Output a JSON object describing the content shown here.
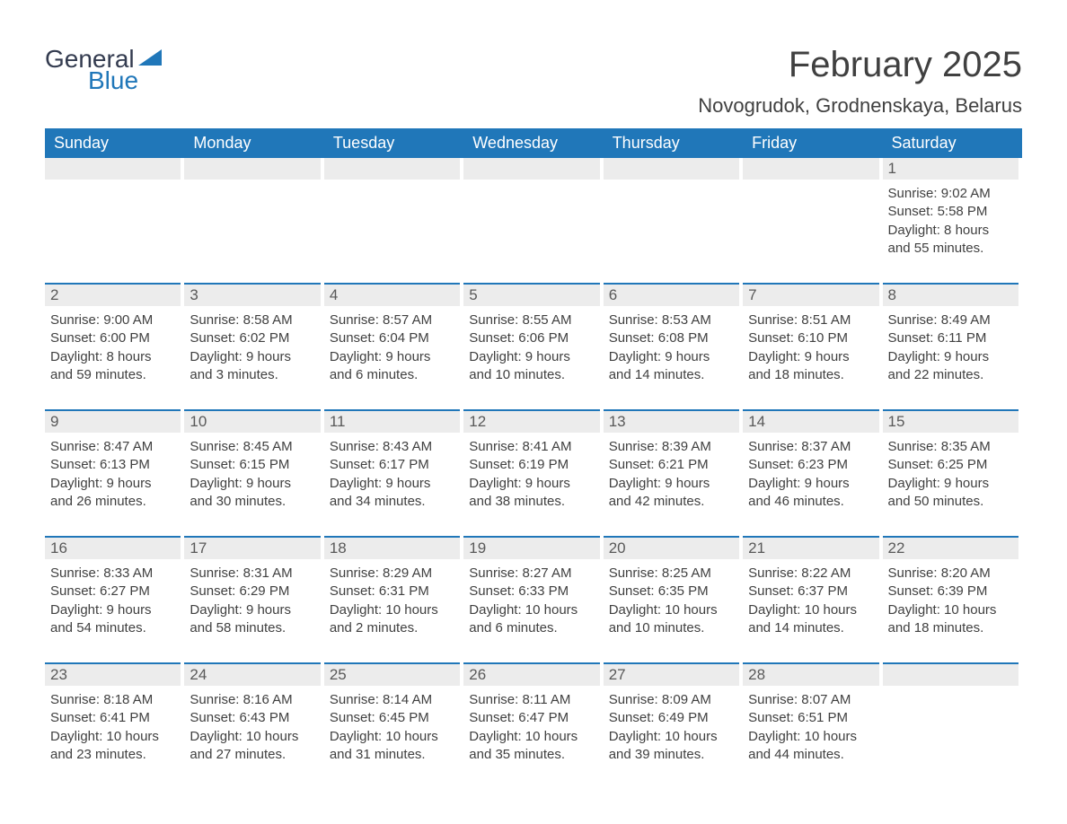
{
  "logo": {
    "text_general": "General",
    "text_blue": "Blue",
    "triangle_color": "#2077b9"
  },
  "title": "February 2025",
  "location": "Novogrudok, Grodnenskaya, Belarus",
  "colors": {
    "header_bg": "#2077b9",
    "header_text": "#ffffff",
    "daynum_bg": "#ececec",
    "daynum_border": "#2077b9",
    "daynum_text": "#595959",
    "body_text": "#404040",
    "page_bg": "#ffffff"
  },
  "weekdays": [
    "Sunday",
    "Monday",
    "Tuesday",
    "Wednesday",
    "Thursday",
    "Friday",
    "Saturday"
  ],
  "weeks": [
    [
      {
        "n": "",
        "sunrise": "",
        "sunset": "",
        "daylight1": "",
        "daylight2": ""
      },
      {
        "n": "",
        "sunrise": "",
        "sunset": "",
        "daylight1": "",
        "daylight2": ""
      },
      {
        "n": "",
        "sunrise": "",
        "sunset": "",
        "daylight1": "",
        "daylight2": ""
      },
      {
        "n": "",
        "sunrise": "",
        "sunset": "",
        "daylight1": "",
        "daylight2": ""
      },
      {
        "n": "",
        "sunrise": "",
        "sunset": "",
        "daylight1": "",
        "daylight2": ""
      },
      {
        "n": "",
        "sunrise": "",
        "sunset": "",
        "daylight1": "",
        "daylight2": ""
      },
      {
        "n": "1",
        "sunrise": "Sunrise: 9:02 AM",
        "sunset": "Sunset: 5:58 PM",
        "daylight1": "Daylight: 8 hours",
        "daylight2": "and 55 minutes."
      }
    ],
    [
      {
        "n": "2",
        "sunrise": "Sunrise: 9:00 AM",
        "sunset": "Sunset: 6:00 PM",
        "daylight1": "Daylight: 8 hours",
        "daylight2": "and 59 minutes."
      },
      {
        "n": "3",
        "sunrise": "Sunrise: 8:58 AM",
        "sunset": "Sunset: 6:02 PM",
        "daylight1": "Daylight: 9 hours",
        "daylight2": "and 3 minutes."
      },
      {
        "n": "4",
        "sunrise": "Sunrise: 8:57 AM",
        "sunset": "Sunset: 6:04 PM",
        "daylight1": "Daylight: 9 hours",
        "daylight2": "and 6 minutes."
      },
      {
        "n": "5",
        "sunrise": "Sunrise: 8:55 AM",
        "sunset": "Sunset: 6:06 PM",
        "daylight1": "Daylight: 9 hours",
        "daylight2": "and 10 minutes."
      },
      {
        "n": "6",
        "sunrise": "Sunrise: 8:53 AM",
        "sunset": "Sunset: 6:08 PM",
        "daylight1": "Daylight: 9 hours",
        "daylight2": "and 14 minutes."
      },
      {
        "n": "7",
        "sunrise": "Sunrise: 8:51 AM",
        "sunset": "Sunset: 6:10 PM",
        "daylight1": "Daylight: 9 hours",
        "daylight2": "and 18 minutes."
      },
      {
        "n": "8",
        "sunrise": "Sunrise: 8:49 AM",
        "sunset": "Sunset: 6:11 PM",
        "daylight1": "Daylight: 9 hours",
        "daylight2": "and 22 minutes."
      }
    ],
    [
      {
        "n": "9",
        "sunrise": "Sunrise: 8:47 AM",
        "sunset": "Sunset: 6:13 PM",
        "daylight1": "Daylight: 9 hours",
        "daylight2": "and 26 minutes."
      },
      {
        "n": "10",
        "sunrise": "Sunrise: 8:45 AM",
        "sunset": "Sunset: 6:15 PM",
        "daylight1": "Daylight: 9 hours",
        "daylight2": "and 30 minutes."
      },
      {
        "n": "11",
        "sunrise": "Sunrise: 8:43 AM",
        "sunset": "Sunset: 6:17 PM",
        "daylight1": "Daylight: 9 hours",
        "daylight2": "and 34 minutes."
      },
      {
        "n": "12",
        "sunrise": "Sunrise: 8:41 AM",
        "sunset": "Sunset: 6:19 PM",
        "daylight1": "Daylight: 9 hours",
        "daylight2": "and 38 minutes."
      },
      {
        "n": "13",
        "sunrise": "Sunrise: 8:39 AM",
        "sunset": "Sunset: 6:21 PM",
        "daylight1": "Daylight: 9 hours",
        "daylight2": "and 42 minutes."
      },
      {
        "n": "14",
        "sunrise": "Sunrise: 8:37 AM",
        "sunset": "Sunset: 6:23 PM",
        "daylight1": "Daylight: 9 hours",
        "daylight2": "and 46 minutes."
      },
      {
        "n": "15",
        "sunrise": "Sunrise: 8:35 AM",
        "sunset": "Sunset: 6:25 PM",
        "daylight1": "Daylight: 9 hours",
        "daylight2": "and 50 minutes."
      }
    ],
    [
      {
        "n": "16",
        "sunrise": "Sunrise: 8:33 AM",
        "sunset": "Sunset: 6:27 PM",
        "daylight1": "Daylight: 9 hours",
        "daylight2": "and 54 minutes."
      },
      {
        "n": "17",
        "sunrise": "Sunrise: 8:31 AM",
        "sunset": "Sunset: 6:29 PM",
        "daylight1": "Daylight: 9 hours",
        "daylight2": "and 58 minutes."
      },
      {
        "n": "18",
        "sunrise": "Sunrise: 8:29 AM",
        "sunset": "Sunset: 6:31 PM",
        "daylight1": "Daylight: 10 hours",
        "daylight2": "and 2 minutes."
      },
      {
        "n": "19",
        "sunrise": "Sunrise: 8:27 AM",
        "sunset": "Sunset: 6:33 PM",
        "daylight1": "Daylight: 10 hours",
        "daylight2": "and 6 minutes."
      },
      {
        "n": "20",
        "sunrise": "Sunrise: 8:25 AM",
        "sunset": "Sunset: 6:35 PM",
        "daylight1": "Daylight: 10 hours",
        "daylight2": "and 10 minutes."
      },
      {
        "n": "21",
        "sunrise": "Sunrise: 8:22 AM",
        "sunset": "Sunset: 6:37 PM",
        "daylight1": "Daylight: 10 hours",
        "daylight2": "and 14 minutes."
      },
      {
        "n": "22",
        "sunrise": "Sunrise: 8:20 AM",
        "sunset": "Sunset: 6:39 PM",
        "daylight1": "Daylight: 10 hours",
        "daylight2": "and 18 minutes."
      }
    ],
    [
      {
        "n": "23",
        "sunrise": "Sunrise: 8:18 AM",
        "sunset": "Sunset: 6:41 PM",
        "daylight1": "Daylight: 10 hours",
        "daylight2": "and 23 minutes."
      },
      {
        "n": "24",
        "sunrise": "Sunrise: 8:16 AM",
        "sunset": "Sunset: 6:43 PM",
        "daylight1": "Daylight: 10 hours",
        "daylight2": "and 27 minutes."
      },
      {
        "n": "25",
        "sunrise": "Sunrise: 8:14 AM",
        "sunset": "Sunset: 6:45 PM",
        "daylight1": "Daylight: 10 hours",
        "daylight2": "and 31 minutes."
      },
      {
        "n": "26",
        "sunrise": "Sunrise: 8:11 AM",
        "sunset": "Sunset: 6:47 PM",
        "daylight1": "Daylight: 10 hours",
        "daylight2": "and 35 minutes."
      },
      {
        "n": "27",
        "sunrise": "Sunrise: 8:09 AM",
        "sunset": "Sunset: 6:49 PM",
        "daylight1": "Daylight: 10 hours",
        "daylight2": "and 39 minutes."
      },
      {
        "n": "28",
        "sunrise": "Sunrise: 8:07 AM",
        "sunset": "Sunset: 6:51 PM",
        "daylight1": "Daylight: 10 hours",
        "daylight2": "and 44 minutes."
      },
      {
        "n": "",
        "sunrise": "",
        "sunset": "",
        "daylight1": "",
        "daylight2": ""
      }
    ]
  ]
}
